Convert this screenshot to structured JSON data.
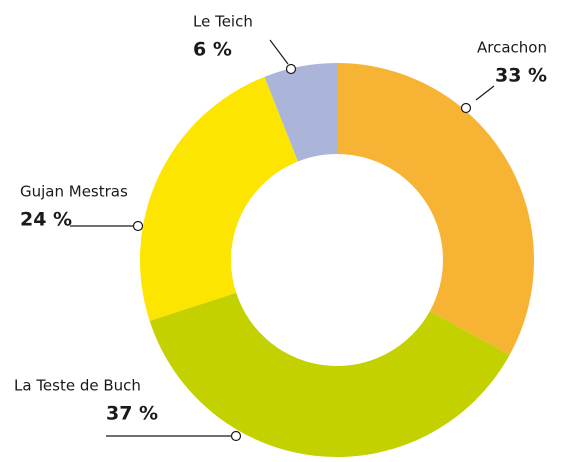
{
  "chart_data": {
    "type": "donut",
    "categories": [
      "Arcachon",
      "La Teste de Buch",
      "Gujan Mestras",
      "Le Teich"
    ],
    "values": [
      33,
      37,
      24,
      6
    ],
    "value_labels": [
      "33 %",
      "37 %",
      "24 %",
      "6 %"
    ],
    "colors": [
      "#f7b334",
      "#c3d100",
      "#fce500",
      "#aab5d9"
    ]
  }
}
